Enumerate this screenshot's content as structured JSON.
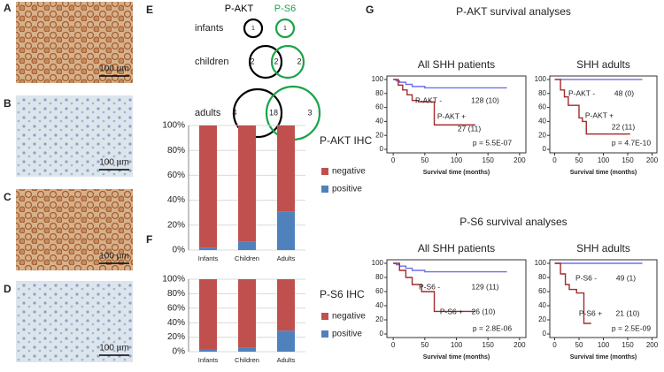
{
  "panel_labels": [
    "A",
    "B",
    "C",
    "D",
    "E",
    "F",
    "G"
  ],
  "ihc": [
    {
      "scale": "100 µm"
    },
    {
      "scale": "100 µm"
    },
    {
      "scale": "100 µm"
    },
    {
      "scale": "100 µm"
    }
  ],
  "venn": {
    "headers": [
      "P-AKT",
      "P-S6"
    ],
    "rows": [
      {
        "name": "infants",
        "counts": [
          1,
          1
        ]
      },
      {
        "name": "children",
        "counts": [
          2,
          2,
          2
        ]
      },
      {
        "name": "adults",
        "counts": [
          4,
          18,
          3
        ]
      }
    ]
  },
  "survival_titles": [
    "P-AKT survival analyses",
    "P-S6 survival analyses"
  ],
  "chart_data": [
    {
      "type": "bar",
      "stacked": true,
      "title": "P-AKT IHC",
      "categories": [
        "Infants",
        "Children",
        "Adults"
      ],
      "series": [
        {
          "name": "positive",
          "color": "#4f81bd",
          "values": [
            2,
            7,
            31
          ]
        },
        {
          "name": "negative",
          "color": "#c0504d",
          "values": [
            98,
            93,
            69
          ]
        }
      ],
      "ylim": [
        0,
        100
      ],
      "yticks": [
        {
          "value": 0,
          "label": "0%"
        },
        {
          "value": 20,
          "label": "20%"
        },
        {
          "value": 40,
          "label": "40%"
        },
        {
          "value": 60,
          "label": "60%"
        },
        {
          "value": 80,
          "label": "80%"
        },
        {
          "value": 100,
          "label": "100%"
        }
      ]
    },
    {
      "type": "bar",
      "stacked": true,
      "title": "P-S6 IHC",
      "categories": [
        "Infants",
        "Children",
        "Adults"
      ],
      "series": [
        {
          "name": "positive",
          "color": "#4f81bd",
          "values": [
            3,
            6,
            29
          ]
        },
        {
          "name": "negative",
          "color": "#c0504d",
          "values": [
            97,
            94,
            71
          ]
        }
      ],
      "ylim": [
        0,
        100
      ],
      "yticks": [
        {
          "value": 0,
          "label": "0%"
        },
        {
          "value": 20,
          "label": "20%"
        },
        {
          "value": 40,
          "label": "40%"
        },
        {
          "value": 60,
          "label": "60%"
        },
        {
          "value": 80,
          "label": "80%"
        },
        {
          "value": 100,
          "label": "100%"
        }
      ]
    },
    {
      "type": "line",
      "title": "All SHH patients",
      "xlabel": "Survival time (months)",
      "xlim": [
        -10,
        210
      ],
      "ylim": [
        -5,
        105
      ],
      "xticks": [
        0,
        50,
        100,
        150,
        200
      ],
      "yticks": [
        0,
        20,
        40,
        60,
        80,
        100
      ],
      "annotations": [
        "P-AKT -",
        "128 (10)",
        "P-AKT +",
        "27 (11)",
        "p = 5.5E-07"
      ],
      "series": [
        {
          "color": "#6f6fe8",
          "x": [
            0,
            5,
            5,
            10,
            10,
            20,
            20,
            30,
            30,
            50,
            50,
            180
          ],
          "values": [
            100,
            100,
            98,
            98,
            96,
            96,
            93,
            93,
            90,
            90,
            88,
            88
          ]
        },
        {
          "color": "#a52a2a",
          "x": [
            0,
            8,
            8,
            15,
            15,
            22,
            22,
            30,
            30,
            40,
            40,
            65,
            65,
            130
          ],
          "values": [
            100,
            100,
            92,
            92,
            85,
            85,
            78,
            78,
            70,
            70,
            68,
            68,
            35,
            35
          ]
        }
      ]
    },
    {
      "type": "line",
      "title": "SHH adults",
      "xlabel": "Survival time (months)",
      "xlim": [
        -10,
        210
      ],
      "ylim": [
        -5,
        105
      ],
      "xticks": [
        0,
        50,
        100,
        150,
        200
      ],
      "yticks": [
        0,
        20,
        40,
        60,
        80,
        100
      ],
      "annotations": [
        "P-AKT -",
        "48 (0)",
        "P-AKT +",
        "22 (11)",
        "p = 4.7E-10"
      ],
      "series": [
        {
          "color": "#6f6fe8",
          "x": [
            0,
            180
          ],
          "values": [
            100,
            100
          ]
        },
        {
          "color": "#a52a2a",
          "x": [
            0,
            12,
            12,
            20,
            20,
            28,
            28,
            50,
            50,
            57,
            57,
            65,
            65,
            155
          ],
          "values": [
            100,
            100,
            85,
            85,
            75,
            75,
            63,
            63,
            45,
            45,
            40,
            40,
            22,
            22
          ]
        }
      ]
    },
    {
      "type": "line",
      "title": "All SHH patients",
      "xlabel": "Survival time (months)",
      "xlim": [
        -10,
        210
      ],
      "ylim": [
        -5,
        105
      ],
      "xticks": [
        0,
        50,
        100,
        150,
        200
      ],
      "yticks": [
        0,
        20,
        40,
        60,
        80,
        100
      ],
      "annotations": [
        "P-S6 -",
        "129 (11)",
        "P-S6 +",
        "26 (10)",
        "p = 2.8E-06"
      ],
      "series": [
        {
          "color": "#6f6fe8",
          "x": [
            0,
            5,
            5,
            10,
            10,
            20,
            20,
            30,
            30,
            50,
            50,
            180
          ],
          "values": [
            100,
            100,
            98,
            98,
            96,
            96,
            93,
            93,
            90,
            90,
            88,
            88
          ]
        },
        {
          "color": "#a52a2a",
          "x": [
            0,
            10,
            10,
            20,
            20,
            30,
            30,
            45,
            45,
            65,
            65,
            130
          ],
          "values": [
            100,
            100,
            90,
            90,
            80,
            80,
            70,
            70,
            60,
            60,
            32,
            32
          ]
        }
      ]
    },
    {
      "type": "line",
      "title": "SHH adults",
      "xlabel": "Survival time (months)",
      "xlim": [
        -10,
        210
      ],
      "ylim": [
        -5,
        105
      ],
      "xticks": [
        0,
        50,
        100,
        150,
        200
      ],
      "yticks": [
        0,
        20,
        40,
        60,
        80,
        100
      ],
      "annotations": [
        "P-S6 -",
        "49 (1)",
        "P-S6 +",
        "21 (10)",
        "p = 2.5E-09"
      ],
      "series": [
        {
          "color": "#6f6fe8",
          "x": [
            0,
            180
          ],
          "values": [
            100,
            100
          ]
        },
        {
          "color": "#a52a2a",
          "x": [
            0,
            12,
            12,
            22,
            22,
            30,
            30,
            45,
            45,
            60,
            60,
            75
          ],
          "values": [
            100,
            100,
            85,
            85,
            70,
            70,
            63,
            63,
            58,
            58,
            15,
            15
          ]
        }
      ]
    }
  ]
}
